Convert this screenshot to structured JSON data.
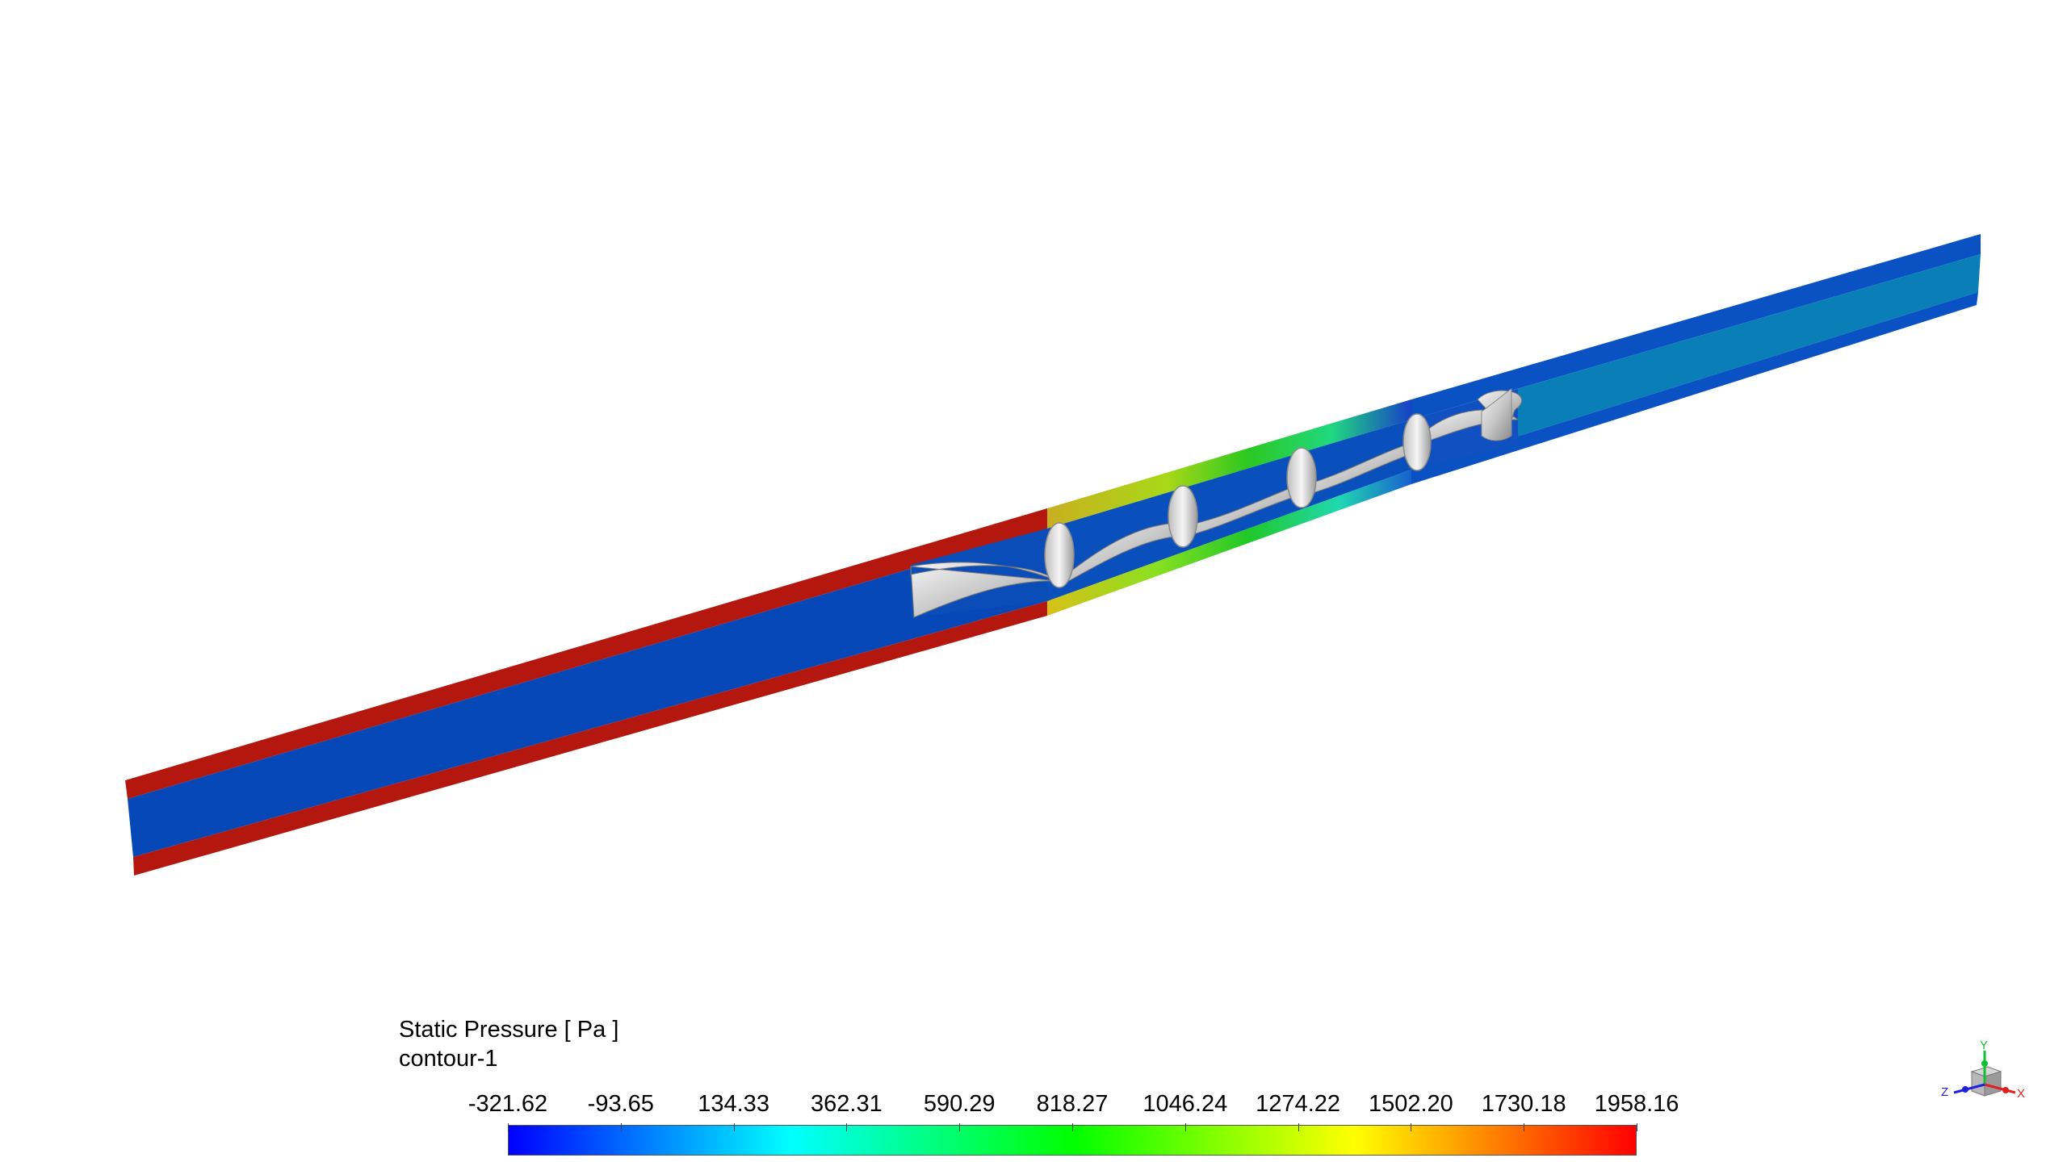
{
  "legend": {
    "title": "Static Pressure [ Pa ]",
    "subtitle": "contour-1",
    "min": -321.62,
    "max": 1958.16,
    "ticks": [
      "-321.62",
      "-93.65",
      "134.33",
      "362.31",
      "590.29",
      "818.27",
      "1046.24",
      "1274.22",
      "1502.20",
      "1730.18",
      "1958.16"
    ],
    "colormap": [
      "#0000ff",
      "#0080ff",
      "#00ffff",
      "#00ff80",
      "#00ff00",
      "#80ff00",
      "#ffff00",
      "#ff8000",
      "#ff0000"
    ]
  },
  "scene": {
    "model": "pipe-with-helical-static-mixer",
    "colors": {
      "wall_high": "#b3170e",
      "core_low": "#0648b8",
      "outlet_wall": "#0a52c4",
      "outlet_core": "#0a7eb6",
      "mixer_blade": "#d8d8d8",
      "mixer_shade": "#9a9a9a"
    },
    "mixer_elements": 6
  },
  "triad": {
    "x_label": "X",
    "y_label": "Y",
    "z_label": "Z",
    "x_color": "#e02020",
    "y_color": "#10c030",
    "z_color": "#2020e0"
  }
}
